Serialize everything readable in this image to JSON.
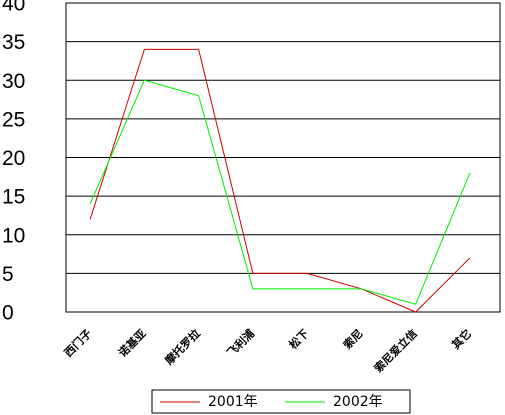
{
  "chart_data": {
    "type": "line",
    "categories": [
      "西门子",
      "诺基亚",
      "摩托罗拉",
      "飞利浦",
      "松下",
      "索尼",
      "索尼爱立信",
      "其它"
    ],
    "series": [
      {
        "name": "2001年",
        "color": "#cc0000",
        "values": [
          12,
          34,
          34,
          5,
          5,
          3,
          0,
          7
        ]
      },
      {
        "name": "2002年",
        "color": "#00ee00",
        "values": [
          14,
          30,
          28,
          3,
          3,
          3,
          1,
          18
        ]
      }
    ],
    "ylim": [
      0,
      40
    ],
    "yticks": [
      0,
      5,
      10,
      15,
      20,
      25,
      30,
      35,
      40
    ],
    "grid": true,
    "legend": "bottom"
  }
}
